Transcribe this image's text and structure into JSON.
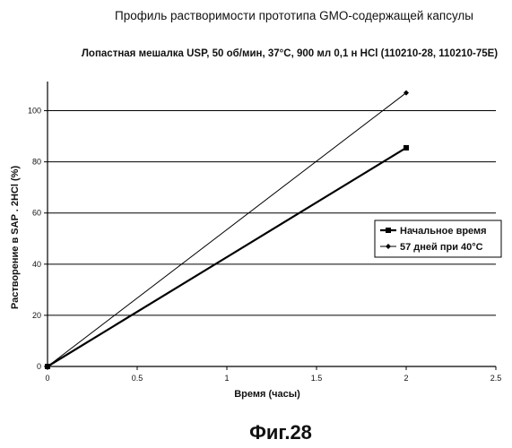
{
  "chart_data": {
    "type": "line",
    "title": "Профиль растворимости прототипа GMO-содержащей капсулы",
    "subtitle": "Лопастная мешалка USP, 50 об/мин, 37°C, 900 мл 0,1 н HCl (110210-28, 110210-75E)",
    "xlabel": "Время (часы)",
    "ylabel": "Растворение в SAP . 2HCl (%)",
    "xlim": [
      0,
      2.5
    ],
    "ylim": [
      0,
      110
    ],
    "xticks": [
      "0",
      "0.5",
      "1",
      "1.5",
      "2",
      "2.5"
    ],
    "yticks": [
      "0",
      "20",
      "40",
      "60",
      "80",
      "100"
    ],
    "grid": "horizontal",
    "legend_position": "right",
    "series": [
      {
        "name": "Начальное время",
        "marker": "square",
        "stroke_width": 2.2,
        "color": "#000000",
        "x": [
          0,
          2
        ],
        "y": [
          0,
          85.5
        ]
      },
      {
        "name": "57 дней при 40°C",
        "marker": "diamond",
        "stroke_width": 1,
        "color": "#000000",
        "x": [
          0,
          2
        ],
        "y": [
          0,
          107
        ]
      }
    ]
  },
  "caption": "Фиг.28"
}
